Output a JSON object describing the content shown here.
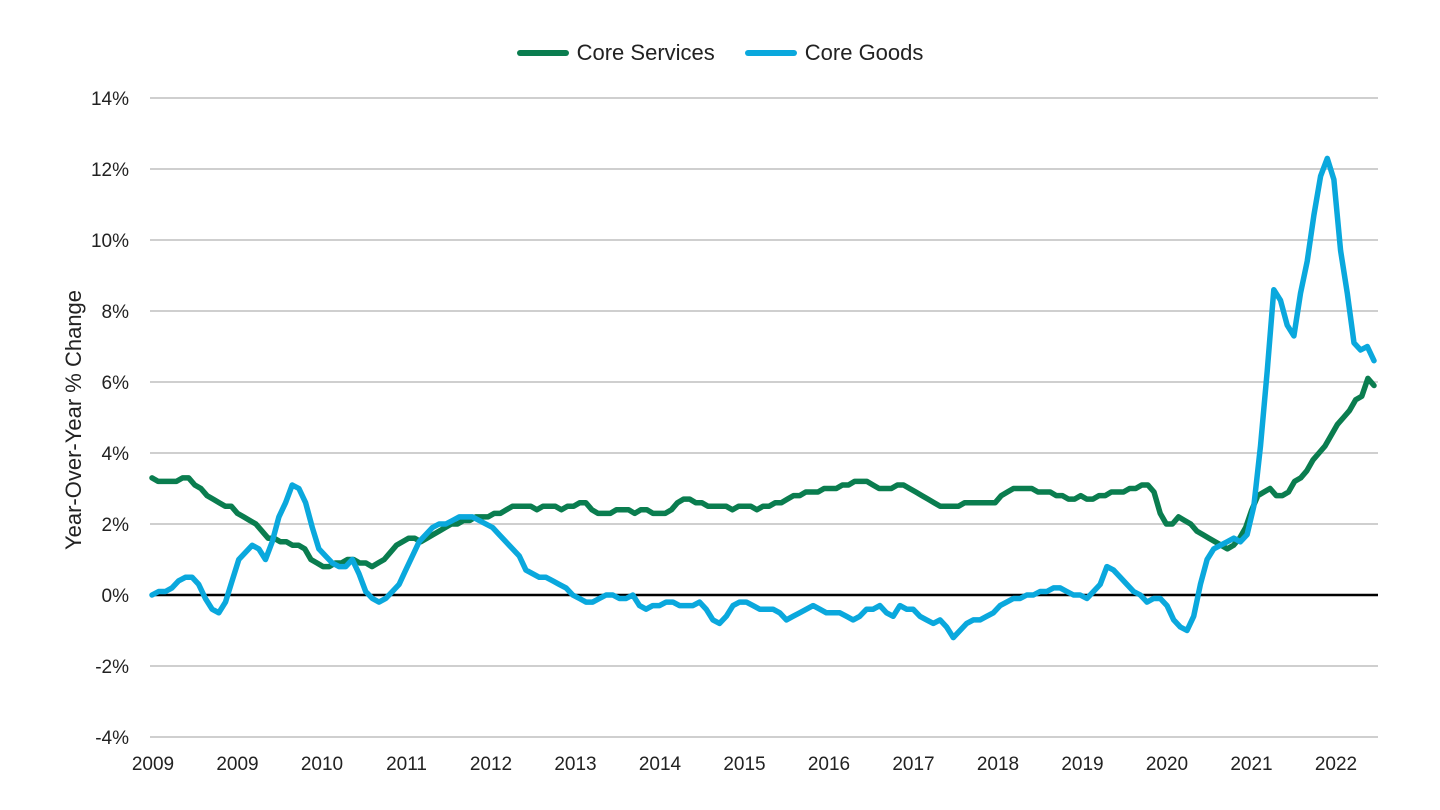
{
  "chart_data": {
    "type": "line",
    "ylabel": "Year-Over-Year % Change",
    "xlabel": "",
    "ylim": [
      -4,
      14
    ],
    "yticks": [
      "14%",
      "12%",
      "10%",
      "8%",
      "6%",
      "4%",
      "2%",
      "0%",
      "-2%",
      "-4%"
    ],
    "xticks": [
      "2009",
      "2009",
      "2010",
      "2011",
      "2012",
      "2013",
      "2014",
      "2015",
      "2016",
      "2017",
      "2018",
      "2019",
      "2020",
      "2021",
      "2022"
    ],
    "legend": "top-center",
    "grid": true,
    "series": [
      {
        "name": "Core Services",
        "color": "#0a7d4f",
        "values": [
          3.3,
          3.2,
          3.2,
          3.2,
          3.2,
          3.3,
          3.3,
          3.1,
          3.0,
          2.8,
          2.7,
          2.6,
          2.5,
          2.5,
          2.3,
          2.2,
          2.1,
          2.0,
          1.8,
          1.6,
          1.6,
          1.5,
          1.5,
          1.4,
          1.4,
          1.3,
          1.0,
          0.9,
          0.8,
          0.8,
          0.9,
          0.9,
          1.0,
          1.0,
          0.9,
          0.9,
          0.8,
          0.9,
          1.0,
          1.2,
          1.4,
          1.5,
          1.6,
          1.6,
          1.5,
          1.6,
          1.7,
          1.8,
          1.9,
          2.0,
          2.0,
          2.1,
          2.1,
          2.2,
          2.2,
          2.2,
          2.3,
          2.3,
          2.4,
          2.5,
          2.5,
          2.5,
          2.5,
          2.4,
          2.5,
          2.5,
          2.5,
          2.4,
          2.5,
          2.5,
          2.6,
          2.6,
          2.4,
          2.3,
          2.3,
          2.3,
          2.4,
          2.4,
          2.4,
          2.3,
          2.4,
          2.4,
          2.3,
          2.3,
          2.3,
          2.4,
          2.6,
          2.7,
          2.7,
          2.6,
          2.6,
          2.5,
          2.5,
          2.5,
          2.5,
          2.4,
          2.5,
          2.5,
          2.5,
          2.4,
          2.5,
          2.5,
          2.6,
          2.6,
          2.7,
          2.8,
          2.8,
          2.9,
          2.9,
          2.9,
          3.0,
          3.0,
          3.0,
          3.1,
          3.1,
          3.2,
          3.2,
          3.2,
          3.1,
          3.0,
          3.0,
          3.0,
          3.1,
          3.1,
          3.0,
          2.9,
          2.8,
          2.7,
          2.6,
          2.5,
          2.5,
          2.5,
          2.5,
          2.6,
          2.6,
          2.6,
          2.6,
          2.6,
          2.6,
          2.8,
          2.9,
          3.0,
          3.0,
          3.0,
          3.0,
          2.9,
          2.9,
          2.9,
          2.8,
          2.8,
          2.7,
          2.7,
          2.8,
          2.7,
          2.7,
          2.8,
          2.8,
          2.9,
          2.9,
          2.9,
          3.0,
          3.0,
          3.1,
          3.1,
          2.9,
          2.3,
          2.0,
          2.0,
          2.2,
          2.1,
          2.0,
          1.8,
          1.7,
          1.6,
          1.5,
          1.4,
          1.3,
          1.4,
          1.6,
          1.9,
          2.4,
          2.8,
          2.9,
          3.0,
          2.8,
          2.8,
          2.9,
          3.2,
          3.3,
          3.5,
          3.8,
          4.0,
          4.2,
          4.5,
          4.8,
          5.0,
          5.2,
          5.5,
          5.6,
          6.1,
          5.9
        ]
      },
      {
        "name": "Core Goods",
        "color": "#0aa8dd",
        "values": [
          0.0,
          0.1,
          0.1,
          0.2,
          0.4,
          0.5,
          0.5,
          0.3,
          -0.1,
          -0.4,
          -0.5,
          -0.2,
          0.4,
          1.0,
          1.2,
          1.4,
          1.3,
          1.0,
          1.5,
          2.2,
          2.6,
          3.1,
          3.0,
          2.6,
          1.9,
          1.3,
          1.1,
          0.9,
          0.8,
          0.8,
          1.0,
          0.6,
          0.1,
          -0.1,
          -0.2,
          -0.1,
          0.1,
          0.3,
          0.7,
          1.1,
          1.5,
          1.7,
          1.9,
          2.0,
          2.0,
          2.1,
          2.2,
          2.2,
          2.2,
          2.1,
          2.0,
          1.9,
          1.7,
          1.5,
          1.3,
          1.1,
          0.7,
          0.6,
          0.5,
          0.5,
          0.4,
          0.3,
          0.2,
          0.0,
          -0.1,
          -0.2,
          -0.2,
          -0.1,
          0.0,
          0.0,
          -0.1,
          -0.1,
          0.0,
          -0.3,
          -0.4,
          -0.3,
          -0.3,
          -0.2,
          -0.2,
          -0.3,
          -0.3,
          -0.3,
          -0.2,
          -0.4,
          -0.7,
          -0.8,
          -0.6,
          -0.3,
          -0.2,
          -0.2,
          -0.3,
          -0.4,
          -0.4,
          -0.4,
          -0.5,
          -0.7,
          -0.6,
          -0.5,
          -0.4,
          -0.3,
          -0.4,
          -0.5,
          -0.5,
          -0.5,
          -0.6,
          -0.7,
          -0.6,
          -0.4,
          -0.4,
          -0.3,
          -0.5,
          -0.6,
          -0.3,
          -0.4,
          -0.4,
          -0.6,
          -0.7,
          -0.8,
          -0.7,
          -0.9,
          -1.2,
          -1.0,
          -0.8,
          -0.7,
          -0.7,
          -0.6,
          -0.5,
          -0.3,
          -0.2,
          -0.1,
          -0.1,
          0.0,
          0.0,
          0.1,
          0.1,
          0.2,
          0.2,
          0.1,
          0.0,
          0.0,
          -0.1,
          0.1,
          0.3,
          0.8,
          0.7,
          0.5,
          0.3,
          0.1,
          0.0,
          -0.2,
          -0.1,
          -0.1,
          -0.3,
          -0.7,
          -0.9,
          -1.0,
          -0.6,
          0.3,
          1.0,
          1.3,
          1.4,
          1.5,
          1.6,
          1.5,
          1.7,
          2.5,
          4.2,
          6.3,
          8.6,
          8.3,
          7.6,
          7.3,
          8.5,
          9.4,
          10.7,
          11.8,
          12.3,
          11.7,
          9.7,
          8.5,
          7.1,
          6.9,
          7.0,
          6.6
        ]
      }
    ]
  }
}
